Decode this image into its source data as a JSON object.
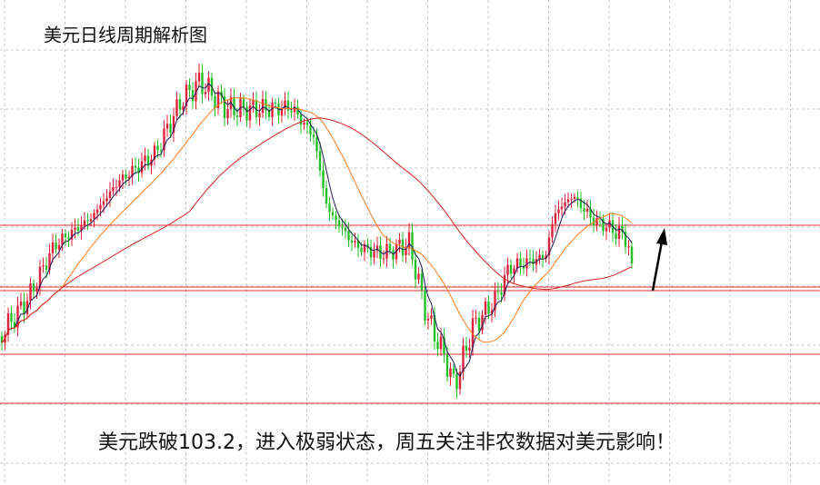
{
  "header": {
    "title": "美元日线周期解析图"
  },
  "caption": "美元跌破103.2，进入极弱状态，周五关注非农数据对美元影响！"
}
